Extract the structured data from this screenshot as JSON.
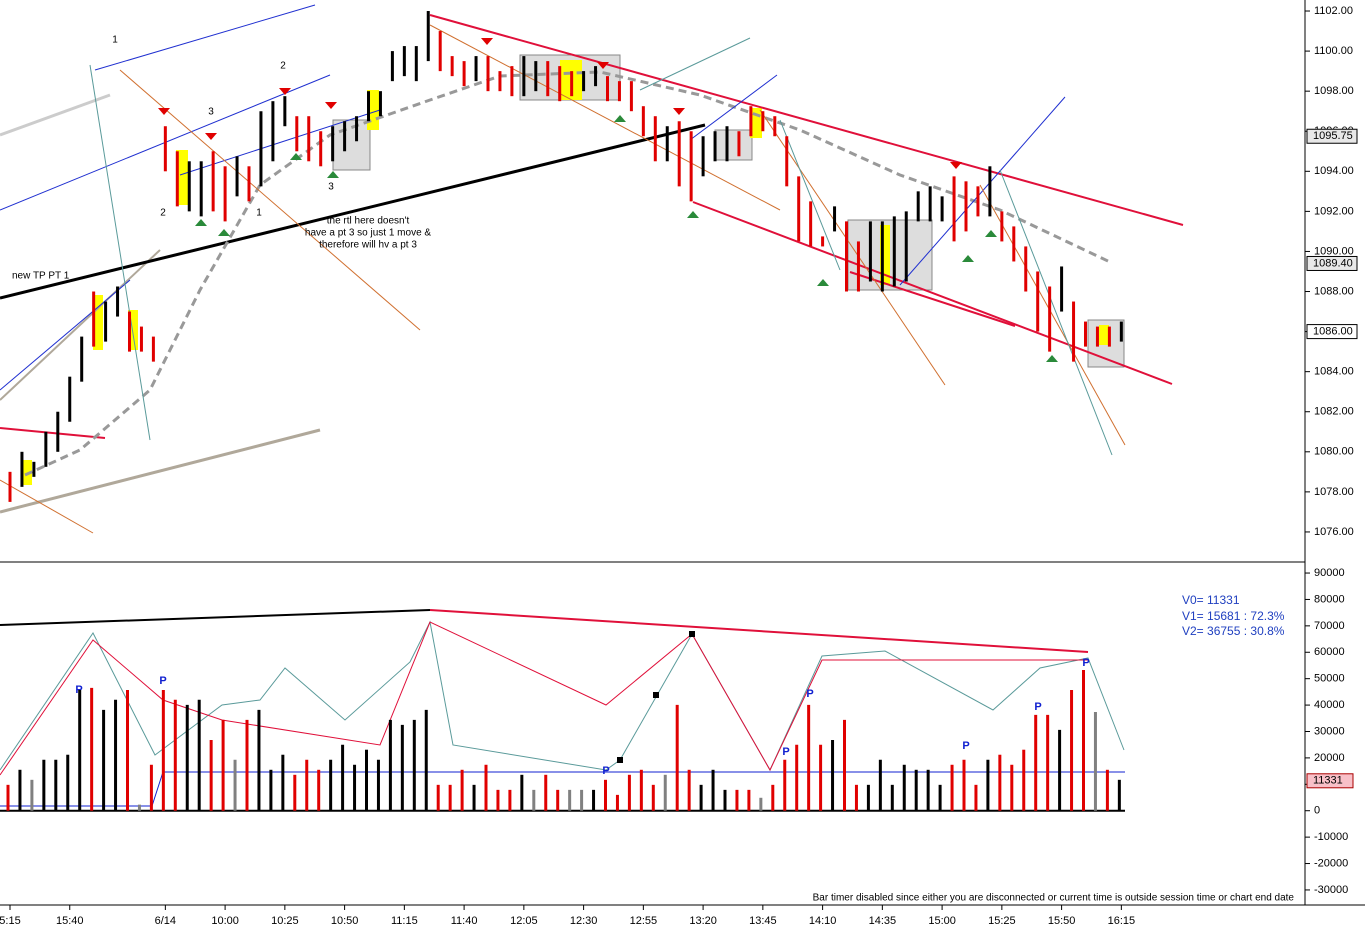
{
  "chart_data": [
    {
      "type": "range_bar",
      "high": [
        1079.0,
        1080.0,
        1079.5,
        1081.0,
        1082.0,
        1083.75,
        1085.75,
        1088.0,
        1087.5,
        1088.25,
        1087.0,
        1086.25,
        1085.75,
        1096.25,
        1095.0,
        1094.5,
        1094.5,
        1095.0,
        1094.25,
        1094.75,
        1094.25,
        1097.0,
        1097.5,
        1097.75,
        1096.75,
        1096.75,
        1096.0,
        1096.25,
        1096.5,
        1096.75,
        1098.0,
        1098.0,
        1100.0,
        1100.25,
        1100.25,
        1102.0,
        1101.0,
        1099.75,
        1099.5,
        1099.75,
        1099.75,
        1099.0,
        1099.25,
        1099.75,
        1099.5,
        1099.5,
        1099.25,
        1099.0,
        1099.0,
        1099.25,
        1098.75,
        1098.5,
        1098.5,
        1097.25,
        1096.75,
        1096.25,
        1096.5,
        1096.0,
        1095.75,
        1096.0,
        1096.25,
        1096.0,
        1097.25,
        1097.0,
        1096.75,
        1095.75,
        1093.75,
        1092.5,
        1090.75,
        1092.25,
        1091.5,
        1090.5,
        1091.5,
        1091.5,
        1091.75,
        1092.0,
        1093.0,
        1093.25,
        1092.75,
        1093.75,
        1093.5,
        1093.25,
        1094.25,
        1092.0,
        1091.25,
        1090.25,
        1089.0,
        1088.25,
        1089.25,
        1087.5,
        1086.5,
        1086.25,
        1086.25,
        1086.5
      ],
      "low": [
        1077.5,
        1078.25,
        1078.75,
        1079.25,
        1080.0,
        1081.5,
        1083.5,
        1085.25,
        1085.5,
        1086.75,
        1085.0,
        1085.0,
        1084.5,
        1094.0,
        1092.25,
        1092.0,
        1091.75,
        1092.0,
        1091.5,
        1092.75,
        1092.5,
        1093.25,
        1094.5,
        1096.25,
        1095.0,
        1094.5,
        1094.25,
        1094.5,
        1095.0,
        1095.5,
        1096.5,
        1096.75,
        1098.5,
        1098.75,
        1098.5,
        1099.5,
        1099.0,
        1098.75,
        1098.25,
        1098.5,
        1098.0,
        1098.0,
        1097.75,
        1097.75,
        1098.0,
        1097.75,
        1097.5,
        1097.75,
        1098.0,
        1098.25,
        1097.5,
        1097.5,
        1097.0,
        1095.75,
        1094.5,
        1094.5,
        1093.25,
        1092.5,
        1093.75,
        1094.5,
        1094.5,
        1094.75,
        1095.75,
        1096.0,
        1095.75,
        1093.25,
        1090.5,
        1090.25,
        1090.25,
        1091.0,
        1088.0,
        1088.0,
        1088.5,
        1088.0,
        1088.25,
        1088.5,
        1091.5,
        1091.5,
        1091.5,
        1090.5,
        1091.0,
        1091.75,
        1091.75,
        1090.5,
        1089.5,
        1088.0,
        1086.0,
        1085.0,
        1087.0,
        1084.5,
        1085.25,
        1085.25,
        1085.25,
        1085.5
      ],
      "colors": [
        "#e00000",
        "#000000",
        "#000000",
        "#000000",
        "#000000",
        "#000000",
        "#000000",
        "#e00000",
        "#000000",
        "#000000",
        "#e00000",
        "#e00000",
        "#e00000",
        "#e00000",
        "#e00000",
        "#000000",
        "#000000",
        "#e00000",
        "#e00000",
        "#000000",
        "#e00000",
        "#000000",
        "#000000",
        "#000000",
        "#e00000",
        "#e00000",
        "#e00000",
        "#000000",
        "#000000",
        "#000000",
        "#000000",
        "#000000",
        "#000000",
        "#000000",
        "#000000",
        "#000000",
        "#e00000",
        "#e00000",
        "#e00000",
        "#000000",
        "#e00000",
        "#e00000",
        "#e00000",
        "#000000",
        "#000000",
        "#e00000",
        "#e00000",
        "#e00000",
        "#000000",
        "#000000",
        "#e00000",
        "#e00000",
        "#e00000",
        "#e00000",
        "#e00000",
        "#000000",
        "#e00000",
        "#e00000",
        "#000000",
        "#000000",
        "#000000",
        "#e00000",
        "#e00000",
        "#e00000",
        "#e00000",
        "#e00000",
        "#e00000",
        "#e00000",
        "#e00000",
        "#000000",
        "#e00000",
        "#e00000",
        "#000000",
        "#000000",
        "#000000",
        "#000000",
        "#000000",
        "#000000",
        "#000000",
        "#e00000",
        "#e00000",
        "#e00000",
        "#000000",
        "#e00000",
        "#e00000",
        "#e00000",
        "#e00000",
        "#e00000",
        "#000000",
        "#e00000",
        "#e00000",
        "#e00000",
        "#e00000",
        "#000000"
      ],
      "ylim": [
        1074.5,
        1102.55
      ],
      "yticks": [
        {
          "value": 1076,
          "label": "1076.00"
        },
        {
          "value": 1078,
          "label": "1078.00"
        },
        {
          "value": 1080,
          "label": "1080.00"
        },
        {
          "value": 1082,
          "label": "1082.00"
        },
        {
          "value": 1084,
          "label": "1084.00"
        },
        {
          "value": 1086,
          "label": "1086.00"
        },
        {
          "value": 1088,
          "label": "1088.00"
        },
        {
          "value": 1090,
          "label": "1090.00"
        },
        {
          "value": 1092,
          "label": "1092.00"
        },
        {
          "value": 1094,
          "label": "1094.00"
        },
        {
          "value": 1096,
          "label": "1096.00"
        },
        {
          "value": 1098,
          "label": "1098.00"
        },
        {
          "value": 1100,
          "label": "1100.00"
        },
        {
          "value": 1102,
          "label": "1102.00"
        }
      ],
      "markers": [
        {
          "value": 1095.75,
          "label": "1095.75"
        },
        {
          "value": 1089.4,
          "label": "1089.40"
        },
        {
          "value": 1086.0,
          "label": "1086.00"
        }
      ],
      "annotations": [
        "1",
        "2",
        "3",
        "2",
        "1",
        "3",
        "new TP PT 1",
        "the rtl here doesn't",
        "have a pt 3 so just 1 move &",
        "therefore will hv a pt 3"
      ]
    },
    {
      "type": "bar",
      "values": [
        9800,
        15500,
        11700,
        19300,
        19300,
        21200,
        45700,
        46500,
        38200,
        42000,
        45700,
        2300,
        17400,
        45700,
        42000,
        40100,
        42000,
        26800,
        34400,
        19300,
        34400,
        38200,
        15500,
        21200,
        13600,
        19300,
        15500,
        19300,
        25000,
        17400,
        23100,
        19300,
        34400,
        32500,
        34400,
        38200,
        9800,
        9800,
        15500,
        9800,
        17400,
        7900,
        7900,
        13600,
        7900,
        13600,
        7900,
        7900,
        7900,
        7900,
        11700,
        6000,
        13600,
        15500,
        9800,
        13600,
        40100,
        15500,
        9800,
        15500,
        7900,
        7900,
        7900,
        4900,
        9800,
        19300,
        25000,
        40100,
        25000,
        26800,
        34400,
        9800,
        9800,
        19300,
        9800,
        17400,
        15500,
        15500,
        9800,
        17400,
        19300,
        9800,
        19300,
        21200,
        17400,
        23100,
        36300,
        36300,
        30600,
        45700,
        53300,
        37400,
        15500,
        11700
      ],
      "colors": [
        "#e00000",
        "#000000",
        "#808080",
        "#000000",
        "#000000",
        "#000000",
        "#000000",
        "#e00000",
        "#000000",
        "#000000",
        "#e00000",
        "#808080",
        "#e00000",
        "#e00000",
        "#e00000",
        "#000000",
        "#000000",
        "#e00000",
        "#e00000",
        "#808080",
        "#e00000",
        "#000000",
        "#000000",
        "#000000",
        "#e00000",
        "#e00000",
        "#e00000",
        "#000000",
        "#000000",
        "#000000",
        "#000000",
        "#000000",
        "#000000",
        "#000000",
        "#000000",
        "#000000",
        "#e00000",
        "#e00000",
        "#e00000",
        "#000000",
        "#e00000",
        "#e00000",
        "#e00000",
        "#000000",
        "#808080",
        "#e00000",
        "#e00000",
        "#808080",
        "#808080",
        "#000000",
        "#e00000",
        "#e00000",
        "#e00000",
        "#e00000",
        "#e00000",
        "#808080",
        "#e00000",
        "#e00000",
        "#000000",
        "#000000",
        "#000000",
        "#e00000",
        "#e00000",
        "#808080",
        "#e00000",
        "#e00000",
        "#e00000",
        "#e00000",
        "#e00000",
        "#000000",
        "#e00000",
        "#e00000",
        "#000000",
        "#000000",
        "#000000",
        "#000000",
        "#000000",
        "#000000",
        "#000000",
        "#e00000",
        "#e00000",
        "#e00000",
        "#000000",
        "#e00000",
        "#e00000",
        "#e00000",
        "#e00000",
        "#e00000",
        "#000000",
        "#e00000",
        "#e00000",
        "#808080",
        "#e00000",
        "#000000"
      ],
      "ylim": [
        -35700,
        93800
      ],
      "yticks": [
        90000,
        80000,
        70000,
        60000,
        50000,
        40000,
        30000,
        20000,
        10000,
        0,
        -10000,
        -20000,
        -30000
      ],
      "marker": {
        "value": 11331,
        "label": "11331"
      },
      "xticks": [
        {
          "value": 0,
          "label": "5:15"
        },
        {
          "value": 5,
          "label": "15:40"
        },
        {
          "value": 13,
          "label": "6/14"
        },
        {
          "value": 18,
          "label": "10:00"
        },
        {
          "value": 23,
          "label": "10:25"
        },
        {
          "value": 28,
          "label": "10:50"
        },
        {
          "value": 33,
          "label": "11:15"
        },
        {
          "value": 38,
          "label": "11:40"
        },
        {
          "value": 43,
          "label": "12:05"
        },
        {
          "value": 48,
          "label": "12:30"
        },
        {
          "value": 53,
          "label": "12:55"
        },
        {
          "value": 58,
          "label": "13:20"
        },
        {
          "value": 63,
          "label": "13:45"
        },
        {
          "value": 68,
          "label": "14:10"
        },
        {
          "value": 73,
          "label": "14:35"
        },
        {
          "value": 78,
          "label": "15:00"
        },
        {
          "value": 83,
          "label": "15:25"
        },
        {
          "value": 88,
          "label": "15:50"
        },
        {
          "value": 93,
          "label": "16:15"
        }
      ],
      "annotations": [
        "P",
        "P",
        "P",
        "P",
        "P",
        "P",
        "P",
        "P"
      ],
      "readouts": [
        "V0= 11331",
        "V1= 15681 : 72.3%",
        "V2= 36755 : 30.8%"
      ],
      "status": "Bar timer disabled since either you are disconnected or current time is outside session time or chart end date"
    }
  ]
}
